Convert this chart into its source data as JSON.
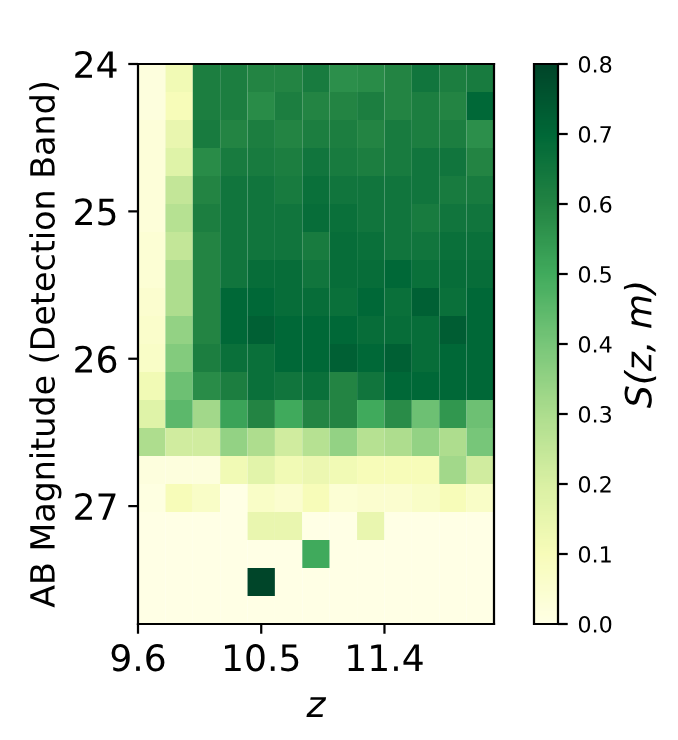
{
  "chart_data": {
    "type": "heatmap",
    "xlabel": "z",
    "ylabel": "AB Magnitude (Detection Band)",
    "clabel": "S(z, m)",
    "x": [
      9.7,
      9.9,
      10.1,
      10.3,
      10.5,
      10.7,
      10.9,
      11.1,
      11.3,
      11.5,
      11.7,
      11.9,
      12.1
    ],
    "y": [
      24.095,
      24.285,
      24.475,
      24.665,
      24.855,
      25.045,
      25.235,
      25.425,
      25.615,
      25.805,
      25.995,
      26.185,
      26.375,
      26.565,
      26.755,
      26.945,
      27.135,
      27.325,
      27.515,
      27.705
    ],
    "xlim": [
      9.6,
      12.2
    ],
    "ylim": [
      27.8,
      24
    ],
    "xticks": [
      9.6,
      10.5,
      11.4
    ],
    "yticks": [
      24,
      25,
      26,
      27
    ],
    "clim": [
      0,
      0.8
    ],
    "cticks": [
      {
        "value": 0,
        "label": "0.0"
      },
      0.1,
      0.2,
      0.3,
      0.4,
      0.5,
      0.6,
      0.7,
      0.8
    ],
    "cells": [
      [
        0.02,
        0.12,
        0.62,
        0.62,
        0.6,
        0.6,
        0.63,
        0.57,
        0.58,
        0.6,
        0.65,
        0.62,
        0.63
      ],
      [
        0.02,
        0.1,
        0.62,
        0.62,
        0.58,
        0.62,
        0.6,
        0.6,
        0.62,
        0.6,
        0.62,
        0.6,
        0.7
      ],
      [
        0.03,
        0.15,
        0.63,
        0.6,
        0.62,
        0.6,
        0.62,
        0.62,
        0.6,
        0.63,
        0.62,
        0.62,
        0.57
      ],
      [
        0.03,
        0.18,
        0.58,
        0.63,
        0.63,
        0.62,
        0.65,
        0.63,
        0.62,
        0.63,
        0.65,
        0.65,
        0.6
      ],
      [
        0.03,
        0.25,
        0.6,
        0.65,
        0.65,
        0.63,
        0.67,
        0.65,
        0.65,
        0.65,
        0.65,
        0.63,
        0.63
      ],
      [
        0.03,
        0.28,
        0.62,
        0.65,
        0.65,
        0.65,
        0.68,
        0.67,
        0.65,
        0.65,
        0.63,
        0.65,
        0.65
      ],
      [
        0.04,
        0.25,
        0.6,
        0.65,
        0.65,
        0.65,
        0.63,
        0.68,
        0.67,
        0.65,
        0.65,
        0.67,
        0.67
      ],
      [
        0.04,
        0.3,
        0.6,
        0.65,
        0.68,
        0.68,
        0.65,
        0.68,
        0.68,
        0.7,
        0.67,
        0.68,
        0.68
      ],
      [
        0.05,
        0.3,
        0.6,
        0.7,
        0.7,
        0.68,
        0.68,
        0.67,
        0.7,
        0.67,
        0.72,
        0.67,
        0.7
      ],
      [
        0.06,
        0.35,
        0.6,
        0.7,
        0.72,
        0.7,
        0.7,
        0.7,
        0.68,
        0.68,
        0.68,
        0.73,
        0.7
      ],
      [
        0.07,
        0.38,
        0.62,
        0.67,
        0.67,
        0.7,
        0.7,
        0.72,
        0.7,
        0.72,
        0.68,
        0.7,
        0.7
      ],
      [
        0.12,
        0.42,
        0.58,
        0.62,
        0.67,
        0.65,
        0.67,
        0.6,
        0.65,
        0.7,
        0.7,
        0.7,
        0.7
      ],
      [
        0.18,
        0.45,
        0.32,
        0.52,
        0.6,
        0.5,
        0.6,
        0.6,
        0.5,
        0.58,
        0.42,
        0.55,
        0.42
      ],
      [
        0.3,
        0.22,
        0.22,
        0.35,
        0.3,
        0.22,
        0.28,
        0.35,
        0.28,
        0.3,
        0.35,
        0.3,
        0.4
      ],
      [
        0.02,
        0.02,
        0.02,
        0.12,
        0.17,
        0.12,
        0.14,
        0.12,
        0.1,
        0.1,
        0.1,
        0.32,
        0.22
      ],
      [
        0.01,
        0.1,
        0.07,
        0.0,
        0.07,
        0.05,
        0.1,
        0.04,
        0.05,
        0.05,
        0.07,
        0.1,
        0.07
      ],
      [
        0,
        0,
        0,
        0,
        0.15,
        0.15,
        0,
        0,
        0.15,
        0,
        0,
        0,
        0
      ],
      [
        0,
        0,
        0,
        0,
        0,
        0,
        0.5,
        0,
        0,
        0,
        0,
        0,
        0
      ],
      [
        0,
        0,
        0,
        0,
        0.8,
        0,
        0,
        0,
        0,
        0,
        0,
        0,
        0
      ],
      [
        0,
        0,
        0,
        0,
        0,
        0,
        0,
        0,
        0,
        0,
        0,
        0,
        0
      ]
    ]
  }
}
